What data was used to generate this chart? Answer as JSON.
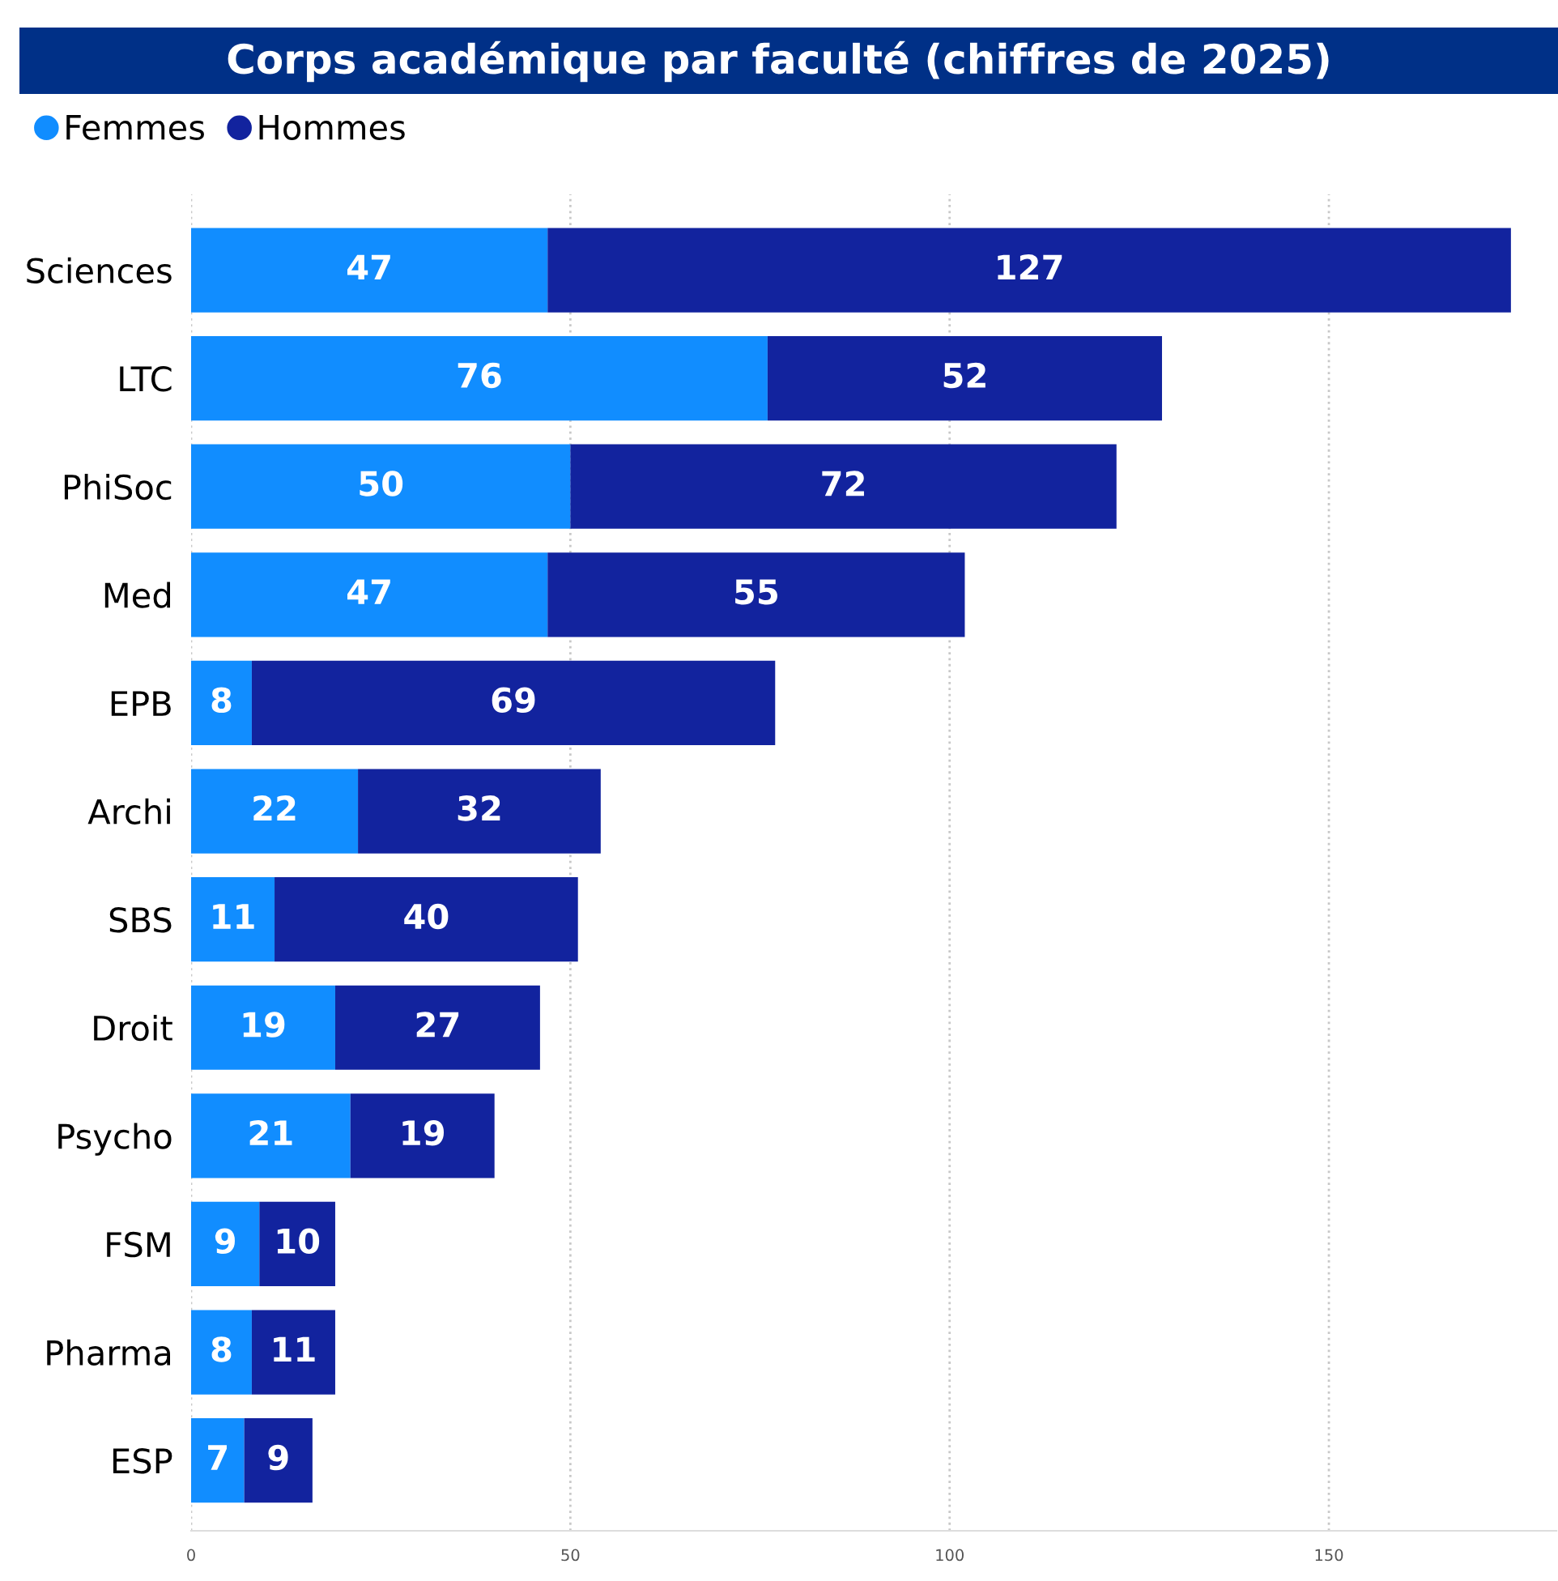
{
  "chart_data": {
    "type": "bar",
    "orientation": "horizontal",
    "stacked": true,
    "title": "Corps académique par faculté (chiffres de 2025)",
    "categories": [
      "Sciences",
      "LTC",
      "PhiSoc",
      "Med",
      "EPB",
      "Archi",
      "SBS",
      "Droit",
      "Psycho",
      "FSM",
      "Pharma",
      "ESP"
    ],
    "series": [
      {
        "name": "Femmes",
        "color": "#118dff",
        "values": [
          47,
          76,
          50,
          47,
          8,
          22,
          11,
          19,
          21,
          9,
          8,
          7
        ]
      },
      {
        "name": "Hommes",
        "color": "#12239e",
        "values": [
          127,
          52,
          72,
          55,
          69,
          32,
          40,
          27,
          19,
          10,
          11,
          9
        ]
      }
    ],
    "xlim": [
      0,
      180
    ],
    "xticks": [
      0,
      50,
      100,
      150
    ],
    "grid": "x",
    "legend": "top left",
    "data_labels": true,
    "marker": "circle"
  }
}
